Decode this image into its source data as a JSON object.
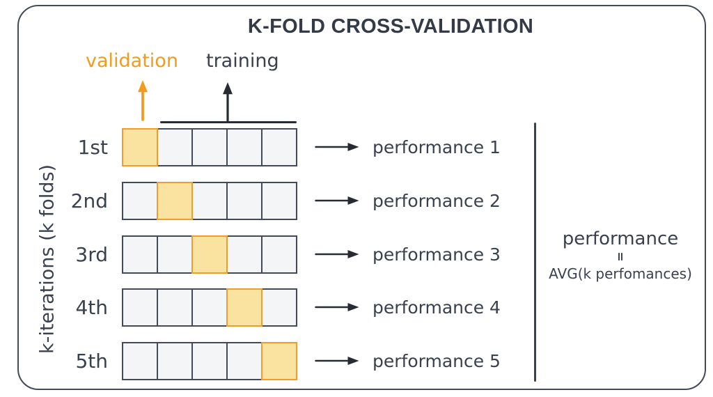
{
  "title": "K-FOLD CROSS-VALIDATION",
  "k": 5,
  "legend": {
    "validation": "validation",
    "training": "training"
  },
  "y_axis_label": "k-iterations (k folds)",
  "folds": [
    {
      "label": "1st",
      "validation_index": 0,
      "performance": "performance 1"
    },
    {
      "label": "2nd",
      "validation_index": 1,
      "performance": "performance 2"
    },
    {
      "label": "3rd",
      "validation_index": 2,
      "performance": "performance 3"
    },
    {
      "label": "4th",
      "validation_index": 3,
      "performance": "performance 4"
    },
    {
      "label": "5th",
      "validation_index": 4,
      "performance": "performance 5"
    }
  ],
  "summary": {
    "line1": "performance",
    "equals": "=",
    "line2": "AVG(k perfomances)"
  },
  "icons": {
    "up_arrow_validation": "orange-up-arrow-icon",
    "up_arrow_training": "dark-up-arrow-icon",
    "row_arrow": "right-arrow-icon"
  },
  "colors": {
    "ink": "#3a414e",
    "orange": "#f39b1e",
    "validation_fill": "#fae2a0",
    "validation_border": "#f09d2d",
    "cell_fill": "#f4f5f7",
    "cell_border": "#434a57",
    "background": "#ffffff"
  }
}
